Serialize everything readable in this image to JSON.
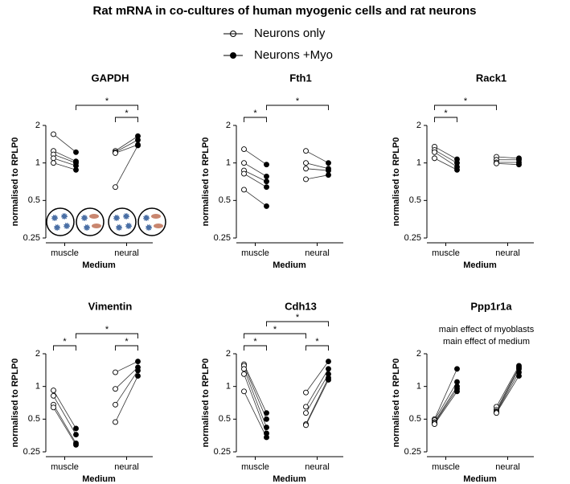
{
  "title": "Rat mRNA in co-cultures of human myogenic cells and rat neurons",
  "legend": [
    {
      "name": "Neurons only",
      "marker": "open"
    },
    {
      "name": "Neurons +Myo",
      "marker": "filled"
    }
  ],
  "chart_data": [
    {
      "type": "paired-dot",
      "title": "GAPDH",
      "ylabel": "normalised to RPLP0",
      "xlabel": "Medium",
      "categories": [
        "muscle",
        "neural"
      ],
      "log_scale": true,
      "ylim": [
        0.25,
        2
      ],
      "yticks": [
        0.25,
        0.5,
        1,
        2
      ],
      "series": [
        {
          "values": [
            [
              1.7,
              1.25,
              1.17,
              1.09,
              1.0
            ],
            [
              1.25,
              1.22,
              1.2,
              0.64
            ]
          ]
        },
        {
          "values": [
            [
              1.22,
              1.03,
              1.0,
              0.95,
              0.88
            ],
            [
              1.64,
              1.53,
              1.4,
              1.38
            ]
          ]
        }
      ],
      "brackets": [
        {
          "label": "*"
        },
        {
          "label": "*"
        }
      ]
    },
    {
      "type": "paired-dot",
      "title": "Fth1",
      "ylabel": "normalised to RPLP0",
      "xlabel": "Medium",
      "categories": [
        "muscle",
        "neural"
      ],
      "log_scale": true,
      "ylim": [
        0.25,
        2
      ],
      "yticks": [
        0.25,
        0.5,
        1,
        2
      ],
      "series": [
        {
          "values": [
            [
              1.29,
              1.0,
              0.87,
              0.82,
              0.61
            ],
            [
              1.25,
              1.0,
              0.9,
              0.74
            ]
          ]
        },
        {
          "values": [
            [
              0.97,
              0.78,
              0.71,
              0.64,
              0.45
            ],
            [
              1.0,
              0.9,
              0.87,
              0.8
            ]
          ]
        }
      ],
      "brackets": [
        {
          "label": "*"
        },
        {
          "label": "*"
        }
      ]
    },
    {
      "type": "paired-dot",
      "title": "Rack1",
      "ylabel": "normalised to RPLP0",
      "xlabel": "Medium",
      "categories": [
        "muscle",
        "neural"
      ],
      "log_scale": true,
      "ylim": [
        0.25,
        2
      ],
      "yticks": [
        0.25,
        0.5,
        1,
        2
      ],
      "series": [
        {
          "values": [
            [
              1.35,
              1.27,
              1.22,
              1.09
            ],
            [
              1.12,
              1.06,
              1.01,
              0.99
            ]
          ]
        },
        {
          "values": [
            [
              1.07,
              1.0,
              0.93,
              0.88
            ],
            [
              1.09,
              1.06,
              1.01,
              0.97
            ]
          ]
        }
      ],
      "brackets": [
        {
          "label": "*"
        },
        {
          "label": "*"
        }
      ]
    },
    {
      "type": "paired-dot",
      "title": "Vimentin",
      "ylabel": "normalised to RPLP0",
      "xlabel": "Medium",
      "categories": [
        "muscle",
        "neural"
      ],
      "log_scale": true,
      "ylim": [
        0.25,
        2
      ],
      "yticks": [
        0.25,
        0.5,
        1,
        2
      ],
      "series": [
        {
          "values": [
            [
              0.92,
              0.82,
              0.68,
              0.64
            ],
            [
              1.35,
              0.95,
              0.68,
              0.47
            ]
          ]
        },
        {
          "values": [
            [
              0.41,
              0.36,
              0.3,
              0.29
            ],
            [
              1.7,
              1.5,
              1.4,
              1.25
            ]
          ]
        }
      ],
      "brackets": [
        {
          "label": "*"
        },
        {
          "label": "*"
        },
        {
          "label": "*"
        }
      ]
    },
    {
      "type": "paired-dot",
      "title": "Cdh13",
      "ylabel": "normalised to RPLP0",
      "xlabel": "Medium",
      "categories": [
        "muscle",
        "neural"
      ],
      "log_scale": true,
      "ylim": [
        0.25,
        2
      ],
      "yticks": [
        0.25,
        0.5,
        1,
        2
      ],
      "series": [
        {
          "values": [
            [
              1.6,
              1.55,
              1.45,
              1.3,
              0.9
            ],
            [
              0.88,
              0.65,
              0.57,
              0.45,
              0.44
            ]
          ]
        },
        {
          "values": [
            [
              0.57,
              0.5,
              0.42,
              0.37,
              0.34
            ],
            [
              1.7,
              1.45,
              1.3,
              1.2,
              1.15
            ]
          ]
        }
      ],
      "brackets": [
        {
          "label": "*"
        },
        {
          "label": "*"
        },
        {
          "label": "*"
        },
        {
          "label": "*"
        }
      ]
    },
    {
      "type": "paired-dot",
      "title": "Ppp1r1a",
      "ylabel": "normalised to RPLP0",
      "xlabel": "Medium",
      "categories": [
        "muscle",
        "neural"
      ],
      "log_scale": true,
      "ylim": [
        0.25,
        2
      ],
      "yticks": [
        0.25,
        0.5,
        1,
        2
      ],
      "series": [
        {
          "values": [
            [
              0.5,
              0.49,
              0.47,
              0.46,
              0.45
            ],
            [
              0.65,
              0.61,
              0.59,
              0.58,
              0.57
            ]
          ]
        },
        {
          "values": [
            [
              1.45,
              1.1,
              1.0,
              0.95,
              0.9
            ],
            [
              1.55,
              1.5,
              1.45,
              1.35,
              1.25
            ]
          ]
        }
      ],
      "annotations": [
        "main effect of myoblasts",
        "main effect of medium"
      ]
    }
  ]
}
